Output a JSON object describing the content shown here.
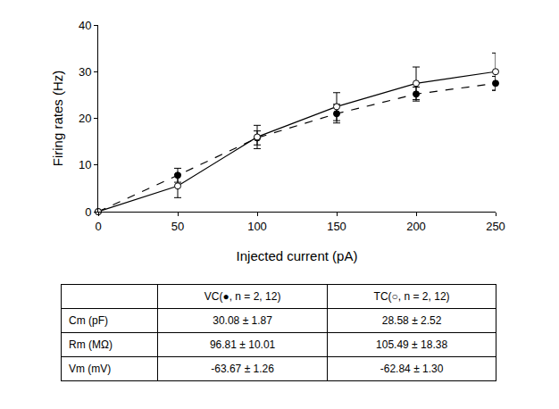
{
  "chart_data": {
    "type": "line",
    "x": [
      0,
      50,
      100,
      150,
      200,
      250
    ],
    "xlim": [
      0,
      250
    ],
    "xticks": [
      0,
      50,
      100,
      150,
      200,
      250
    ],
    "ylim": [
      0,
      40
    ],
    "yticks": [
      0,
      10,
      20,
      30,
      40
    ],
    "x_label": "Injected current (pA)",
    "y_label": "Firing rates (Hz)",
    "grid": false,
    "series": [
      {
        "color": "#000000",
        "marker": "filled circle",
        "line_style": "dash",
        "values": [
          0,
          7.8,
          15.8,
          21,
          25.2,
          27.5
        ],
        "errors": [
          0,
          1.5,
          1.5,
          2,
          1.5,
          1.5
        ]
      },
      {
        "color": "#000000",
        "marker": "open circle",
        "line_style": "solid",
        "values": [
          0,
          5.5,
          16,
          22.5,
          27.5,
          30
        ],
        "errors": [
          0,
          2.5,
          2.5,
          3,
          3.5,
          4
        ]
      }
    ]
  },
  "table": {
    "header": [
      "VC(●, n = 2, 12)",
      "TC(○, n = 2, 12)"
    ],
    "rows": [
      [
        "Cm (pF)",
        "30.08 ± 1.87",
        "28.58 ± 2.52"
      ],
      [
        "Rm (MΩ)",
        "96.81 ± 10.01",
        "105.49 ± 18.38"
      ],
      [
        "Vm (mV)",
        "-63.67 ± 1.26",
        "-62.84 ± 1.30"
      ]
    ]
  }
}
